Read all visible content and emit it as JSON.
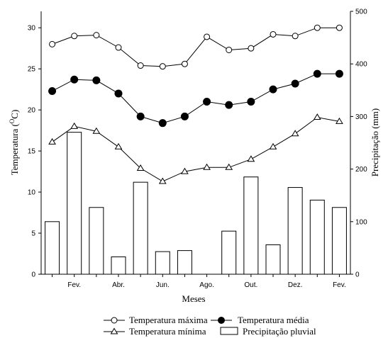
{
  "chart_data": {
    "type": "bar+line",
    "x_ticks": [
      "Fev.",
      "Abr.",
      "Jun.",
      "Ago.",
      "Out.",
      "Dez.",
      "Fev."
    ],
    "xlabel": "Meses",
    "ylabel_left_prefix": "Temperatura (",
    "ylabel_left_sup": "O",
    "ylabel_left_suffix": "C)",
    "ylabel_right": "Precipitação (mm)",
    "ylim_left": [
      0,
      32
    ],
    "ylim_right": [
      0,
      500
    ],
    "yticks_left": [
      0,
      5,
      10,
      15,
      20,
      25,
      30
    ],
    "yticks_right": [
      0,
      100,
      200,
      300,
      400,
      500
    ],
    "grid": false,
    "legend_placement": "bottom",
    "series": [
      {
        "name": "Temperatura máxima",
        "kind": "line",
        "marker": "open-circle",
        "axis": "left",
        "values": [
          28.0,
          29.0,
          29.1,
          27.6,
          25.4,
          25.3,
          25.6,
          28.9,
          27.3,
          27.5,
          29.2,
          29.0,
          30.0,
          30.0
        ]
      },
      {
        "name": "Temperatura média",
        "kind": "line",
        "marker": "filled-circle",
        "axis": "left",
        "values": [
          22.3,
          23.7,
          23.6,
          22.0,
          19.2,
          18.4,
          19.2,
          21.0,
          20.6,
          21.0,
          22.5,
          23.2,
          24.4,
          24.4
        ]
      },
      {
        "name": "Temperatura mínima",
        "kind": "line",
        "marker": "open-triangle",
        "axis": "left",
        "values": [
          16.1,
          18.0,
          17.4,
          15.5,
          12.9,
          11.3,
          12.5,
          13.0,
          13.0,
          14.0,
          15.5,
          17.1,
          19.1,
          18.6
        ]
      },
      {
        "name": "Precipitação pluvial",
        "kind": "bar",
        "axis": "right",
        "values": [
          100,
          270,
          127,
          33,
          175,
          43,
          45,
          0,
          82,
          185,
          56,
          165,
          141,
          127
        ]
      }
    ]
  }
}
